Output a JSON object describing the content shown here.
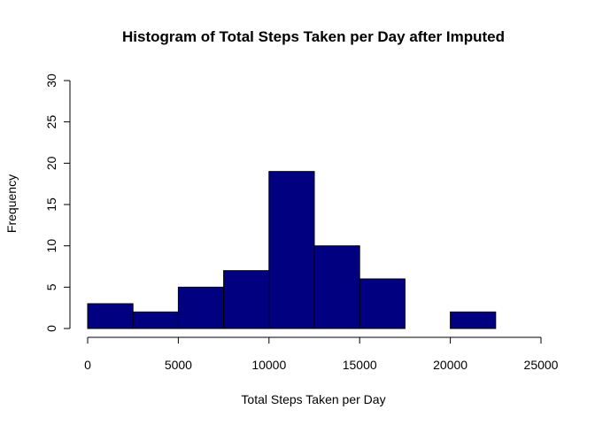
{
  "chart_data": {
    "type": "bar",
    "title": "Histogram of Total Steps Taken per Day after Imputed",
    "xlabel": "Total Steps Taken per Day",
    "ylabel": "Frequency",
    "bins": [
      {
        "x0": 0,
        "x1": 2500,
        "count": 3
      },
      {
        "x0": 2500,
        "x1": 5000,
        "count": 2
      },
      {
        "x0": 5000,
        "x1": 7500,
        "count": 5
      },
      {
        "x0": 7500,
        "x1": 10000,
        "count": 7
      },
      {
        "x0": 10000,
        "x1": 12500,
        "count": 19
      },
      {
        "x0": 12500,
        "x1": 15000,
        "count": 10
      },
      {
        "x0": 15000,
        "x1": 17500,
        "count": 6
      },
      {
        "x0": 17500,
        "x1": 20000,
        "count": 0
      },
      {
        "x0": 20000,
        "x1": 22500,
        "count": 2
      }
    ],
    "xlim": [
      0,
      25000
    ],
    "ylim": [
      0,
      30
    ],
    "xticks": [
      "0",
      "5000",
      "10000",
      "15000",
      "20000",
      "25000"
    ],
    "yticks": [
      "0",
      "5",
      "10",
      "15",
      "20",
      "25",
      "30"
    ],
    "bar_color": "#000080",
    "grid": false,
    "legend": "none"
  }
}
